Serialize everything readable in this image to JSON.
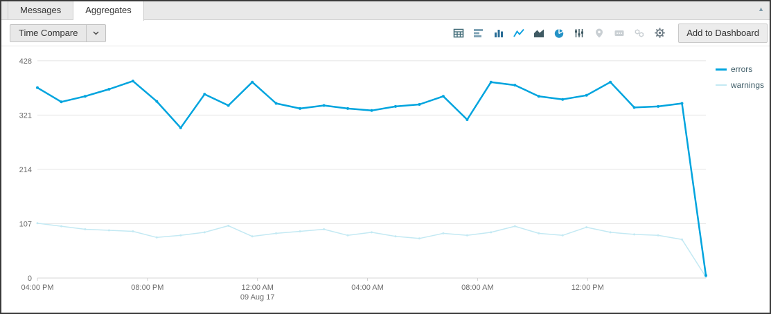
{
  "window": {
    "panel_collapse_glyph": "▲"
  },
  "tabs": [
    {
      "label": "Messages",
      "active": false
    },
    {
      "label": "Aggregates",
      "active": true
    }
  ],
  "toolbar": {
    "time_compare_label": "Time Compare",
    "add_to_dashboard_label": "Add to Dashboard",
    "icons": [
      {
        "name": "table-icon",
        "enabled": true
      },
      {
        "name": "bar-chart-icon",
        "enabled": true
      },
      {
        "name": "column-chart-icon",
        "enabled": true
      },
      {
        "name": "line-chart-icon",
        "enabled": true,
        "active": true
      },
      {
        "name": "area-chart-icon",
        "enabled": true
      },
      {
        "name": "pie-chart-icon",
        "enabled": true
      },
      {
        "name": "box-plot-icon",
        "enabled": true
      },
      {
        "name": "map-icon",
        "enabled": false
      },
      {
        "name": "single-value-icon",
        "enabled": false
      },
      {
        "name": "honeycomb-icon",
        "enabled": false
      },
      {
        "name": "settings-gear-icon",
        "enabled": true
      }
    ]
  },
  "chart_data": {
    "type": "line",
    "title": "",
    "xlabel": "",
    "ylabel": "",
    "grid": "horizontal",
    "legend_position": "right",
    "x_range_hours": [
      0,
      24.3
    ],
    "ylim": [
      0,
      436
    ],
    "yticks": [
      0,
      107,
      214,
      321,
      428
    ],
    "xticks": [
      {
        "h": 0,
        "label": "04:00 PM"
      },
      {
        "h": 4,
        "label": "08:00 PM"
      },
      {
        "h": 8,
        "label": "12:00 AM",
        "sublabel": "09 Aug 17"
      },
      {
        "h": 12,
        "label": "04:00 AM"
      },
      {
        "h": 16,
        "label": "08:00 AM"
      },
      {
        "h": 20,
        "label": "12:00 PM"
      }
    ],
    "series": [
      {
        "name": "errors",
        "color": "#00a4de",
        "width": 2.5,
        "values": [
          375,
          347,
          358,
          372,
          388,
          348,
          296,
          362,
          340,
          386,
          344,
          334,
          340,
          334,
          330,
          338,
          342,
          358,
          312,
          386,
          380,
          358,
          352,
          360,
          386,
          336,
          338,
          344,
          5
        ]
      },
      {
        "name": "warnings",
        "color": "#c3e9f3",
        "width": 1.5,
        "values": [
          108,
          102,
          96,
          94,
          92,
          80,
          84,
          90,
          103,
          82,
          88,
          92,
          96,
          84,
          90,
          82,
          78,
          88,
          84,
          90,
          102,
          88,
          84,
          100,
          90,
          86,
          84,
          76,
          2
        ]
      }
    ]
  }
}
